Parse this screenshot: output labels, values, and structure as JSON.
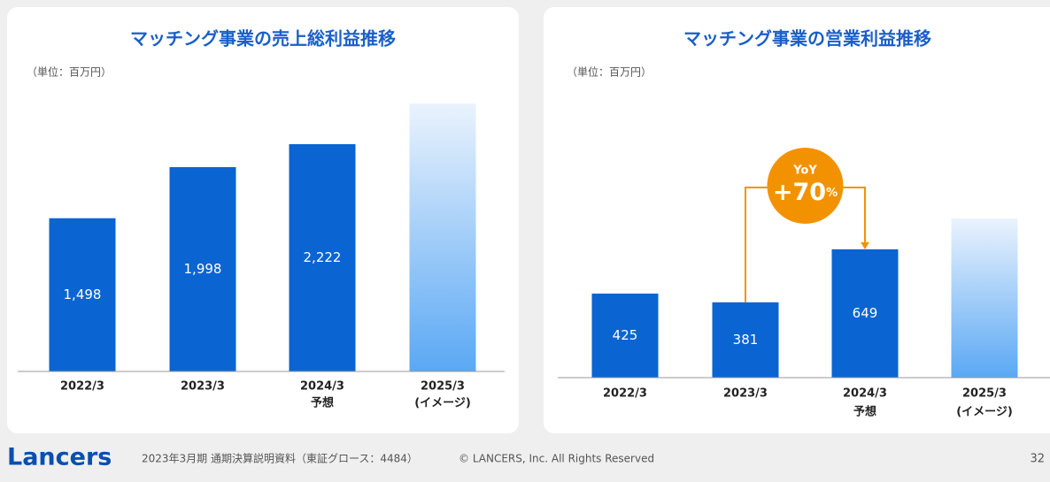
{
  "chart_data": [
    {
      "type": "bar",
      "title": "マッチング事業の売上総利益推移",
      "unit_note": "（単位：百万円）",
      "categories": [
        "2022/3",
        "2023/3",
        "2024/3",
        "2025/3"
      ],
      "category_notes": [
        null,
        null,
        "予想",
        "(イメージ)"
      ],
      "values": [
        1498,
        1998,
        2222,
        2620
      ],
      "value_labels": [
        "1,498",
        "1,998",
        "2,222",
        null
      ],
      "color": "#0a64d2"
    },
    {
      "type": "bar",
      "title": "マッチング事業の営業利益推移",
      "unit_note": "（単位：百万円）",
      "categories": [
        "2022/3",
        "2023/3",
        "2024/3",
        "2025/3"
      ],
      "category_notes": [
        null,
        null,
        "予想",
        "(イメージ)"
      ],
      "values": [
        425,
        381,
        649,
        805
      ],
      "value_labels": [
        "425",
        "381",
        "649",
        null
      ],
      "color": "#0a64d2",
      "annotation": {
        "title": "YoY",
        "text": "+70",
        "unit": "%"
      }
    }
  ],
  "footer": {
    "logo": "Lancers",
    "text": "2023年3月期 通期決算説明資料（東証グロース：4484）",
    "copyright": "© LANCERS, Inc. All Rights Reserved",
    "page": "32"
  }
}
